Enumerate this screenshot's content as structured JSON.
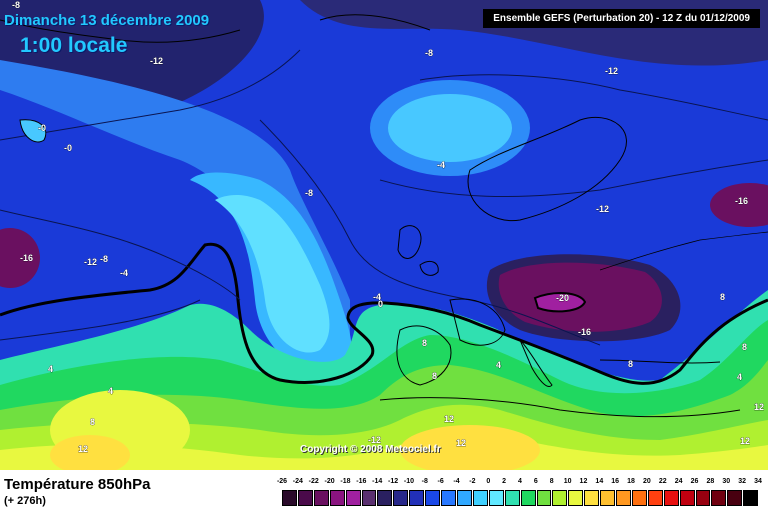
{
  "header": {
    "date": "Dimanche 13 décembre 2009",
    "time": "1:00 locale",
    "model": "Ensemble GEFS (Perturbation 20)  -  12 Z du 01/12/2009"
  },
  "copyright": "Copyright © 2008 Meteociel.fr",
  "footer": {
    "variable": "Température 850hPa",
    "lead_time": "(+ 276h)"
  },
  "legend": {
    "labels": [
      "-26",
      "-24",
      "-22",
      "-20",
      "-18",
      "-16",
      "-14",
      "-12",
      "-10",
      "-8",
      "-6",
      "-4",
      "-2",
      "0",
      "2",
      "4",
      "6",
      "8",
      "10",
      "12",
      "14",
      "16",
      "18",
      "20",
      "22",
      "24",
      "26",
      "28",
      "30",
      "32",
      "34"
    ],
    "colors": [
      "#2a0a2a",
      "#4a0a4a",
      "#6a1060",
      "#8a1480",
      "#a020a0",
      "#5a3070",
      "#2a2060",
      "#28288a",
      "#2230b8",
      "#1a48e8",
      "#2878ff",
      "#30a8ff",
      "#40d0ff",
      "#60e8ff",
      "#30e0b0",
      "#20d860",
      "#70e040",
      "#b0f030",
      "#e8f840",
      "#ffe040",
      "#ffc030",
      "#ff9820",
      "#ff7010",
      "#ff4010",
      "#e81010",
      "#c00010",
      "#980010",
      "#700010",
      "#480010",
      "#000000"
    ]
  },
  "contour_labels": [
    "-8",
    "-12",
    "-8",
    "-12",
    "-4",
    "-8",
    "-12",
    "-16",
    "-0",
    "-0",
    "-16",
    "-12",
    "-8",
    "-4",
    "-4",
    "0",
    "8",
    "8",
    "4",
    "4",
    "-20",
    "-16",
    "4",
    "8",
    "12",
    "12",
    "12",
    "8",
    "8",
    "4",
    "12",
    "8",
    "12",
    "-12"
  ]
}
